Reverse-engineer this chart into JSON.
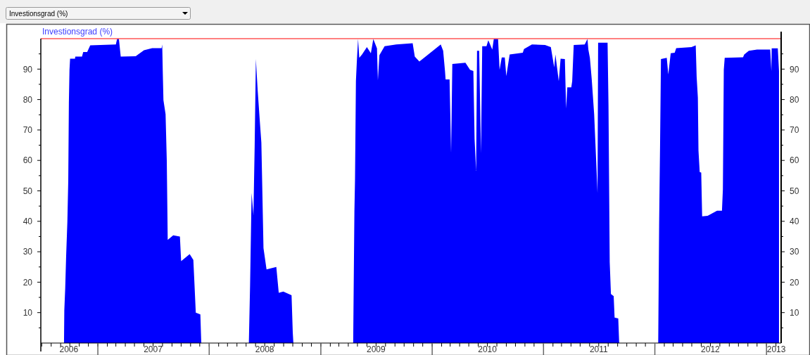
{
  "chart_data": {
    "type": "area",
    "title": "Investionsgrad (%)",
    "x": [
      "2006-09-12",
      "2006-09-13",
      "2006-09-16",
      "2006-09-19",
      "2006-09-23",
      "2006-09-26",
      "2006-09-28",
      "2006-09-30",
      "2006-10-02",
      "2006-10-18",
      "2006-10-19",
      "2006-11-10",
      "2006-11-14",
      "2006-11-27",
      "2006-12-07",
      "2007-03-01",
      "2007-03-05",
      "2007-03-11",
      "2007-03-17",
      "2007-05-05",
      "2007-06-01",
      "2007-06-28",
      "2007-07-29",
      "2007-07-31",
      "2007-08-02",
      "2007-08-04",
      "2007-08-11",
      "2007-08-15",
      "2007-08-18",
      "2007-09-05",
      "2007-09-27",
      "2007-10-01",
      "2007-10-29",
      "2007-11-10",
      "2007-11-14",
      "2007-11-18",
      "2007-12-03",
      "2007-12-06",
      "2008-05-10",
      "2008-05-14",
      "2008-05-19",
      "2008-05-25",
      "2008-05-29",
      "2008-06-02",
      "2008-06-08",
      "2008-06-15",
      "2008-06-20",
      "2008-06-27",
      "2008-07-07",
      "2008-08-08",
      "2008-08-16",
      "2008-08-31",
      "2008-09-27",
      "2008-10-01",
      "2008-10-03",
      "2009-04-17",
      "2009-04-18",
      "2009-04-21",
      "2009-04-23",
      "2009-04-26",
      "2009-04-29",
      "2009-05-03",
      "2009-05-07",
      "2009-05-16",
      "2009-06-01",
      "2009-06-14",
      "2009-06-22",
      "2009-07-04",
      "2009-07-07",
      "2009-07-12",
      "2009-07-29",
      "2009-09-05",
      "2009-10-29",
      "2009-11-05",
      "2009-11-20",
      "2009-12-14",
      "2010-01-29",
      "2010-02-06",
      "2010-02-12",
      "2010-02-14",
      "2010-02-27",
      "2010-03-04",
      "2010-03-08",
      "2010-04-20",
      "2010-05-05",
      "2010-05-16",
      "2010-05-20",
      "2010-05-25",
      "2010-05-28",
      "2010-06-04",
      "2010-06-10",
      "2010-06-14",
      "2010-06-28",
      "2010-07-04",
      "2010-07-17",
      "2010-07-22",
      "2010-08-05",
      "2010-08-10",
      "2010-08-17",
      "2010-08-27",
      "2010-09-01",
      "2010-09-12",
      "2010-10-25",
      "2010-10-29",
      "2010-11-24",
      "2011-01-06",
      "2011-01-25",
      "2011-02-05",
      "2011-02-09",
      "2011-02-20",
      "2011-02-26",
      "2011-03-12",
      "2011-03-16",
      "2011-03-20",
      "2011-04-02",
      "2011-04-05",
      "2011-04-10",
      "2011-05-16",
      "2011-05-25",
      "2011-05-28",
      "2011-06-02",
      "2011-06-08",
      "2011-06-16",
      "2011-06-21",
      "2011-06-27",
      "2011-06-29",
      "2011-07-30",
      "2011-08-02",
      "2011-08-06",
      "2011-08-10",
      "2011-08-19",
      "2011-08-22",
      "2011-09-03",
      "2011-09-06",
      "2012-01-12",
      "2012-01-15",
      "2012-01-18",
      "2012-01-21",
      "2012-02-09",
      "2012-02-14",
      "2012-02-22",
      "2012-03-06",
      "2012-03-11",
      "2012-04-30",
      "2012-05-14",
      "2012-05-17",
      "2012-05-21",
      "2012-05-23",
      "2012-05-27",
      "2012-06-01",
      "2012-06-04",
      "2012-06-22",
      "2012-07-23",
      "2012-08-08",
      "2012-08-11",
      "2012-08-14",
      "2012-08-17",
      "2012-10-16",
      "2012-10-20",
      "2012-11-04",
      "2012-12-01",
      "2013-01-13",
      "2013-01-17",
      "2013-01-18",
      "2013-02-07",
      "2013-02-11"
    ],
    "series": [
      {
        "color": "#0000ff",
        "values": [
          0,
          10.7,
          18,
          28.5,
          39.7,
          53.5,
          79,
          89.8,
          93.4,
          93.4,
          94.1,
          94.1,
          95.6,
          95.6,
          97.8,
          98.1,
          99.9,
          99.9,
          94.1,
          94.2,
          96.2,
          96.9,
          96.9,
          98.1,
          88.3,
          79.8,
          75.2,
          59.7,
          33.9,
          35.4,
          35,
          26.9,
          29.2,
          27.3,
          18.8,
          10,
          9.4,
          0,
          0,
          18.8,
          49.3,
          42,
          64.4,
          93.3,
          82.9,
          72.8,
          65.9,
          31.2,
          24.2,
          25,
          16.5,
          16.9,
          15.7,
          3.4,
          0,
          0,
          10.7,
          43.1,
          53.5,
          86,
          92.5,
          99.9,
          93.7,
          94.8,
          97.2,
          95.2,
          99.9,
          96.8,
          86.3,
          94.6,
          97.5,
          98.1,
          98.5,
          94.1,
          92.5,
          94.4,
          98.1,
          96,
          89.4,
          86.6,
          86.6,
          62.4,
          91.7,
          92.1,
          89.8,
          89.4,
          67.1,
          56.6,
          96,
          96,
          62.4,
          97.5,
          97.5,
          99.5,
          96.4,
          99.9,
          99.9,
          89.8,
          93.8,
          93.8,
          87.7,
          94.8,
          95.4,
          96.6,
          98.1,
          97.9,
          97.2,
          90.6,
          94.8,
          86,
          93.4,
          93.3,
          77.1,
          84,
          84,
          86,
          97.9,
          98.1,
          99.9,
          96.4,
          93.7,
          86.7,
          75.2,
          63.6,
          49.3,
          98.7,
          98.7,
          78.2,
          26.6,
          16.1,
          15.4,
          8.4,
          8.1,
          0,
          0,
          39.3,
          64.4,
          93.3,
          93.7,
          88.3,
          95.2,
          95.4,
          96.9,
          97.2,
          97.8,
          87.5,
          80.6,
          63.2,
          56.2,
          56,
          41.6,
          41.8,
          43.5,
          43.5,
          50.5,
          89.8,
          93.7,
          93.9,
          94.8,
          96,
          96.4,
          96.4,
          89.4,
          96.8,
          96.8,
          89.4
        ]
      }
    ],
    "xlim": [
      "2006-06-28",
      "2013-02-18"
    ],
    "xticks": [
      {
        "value": "2006-09-28",
        "label": "2006"
      },
      {
        "value": "2007-01-01",
        "label": null
      },
      {
        "value": "2007-07-01",
        "label": "2007"
      },
      {
        "value": "2008-01-01",
        "label": null
      },
      {
        "value": "2008-07-01",
        "label": "2008"
      },
      {
        "value": "2009-01-01",
        "label": null
      },
      {
        "value": "2009-07-01",
        "label": "2009"
      },
      {
        "value": "2010-01-01",
        "label": null
      },
      {
        "value": "2010-07-01",
        "label": "2010"
      },
      {
        "value": "2011-01-01",
        "label": null
      },
      {
        "value": "2011-07-01",
        "label": "2011"
      },
      {
        "value": "2012-01-01",
        "label": null
      },
      {
        "value": "2012-07-01",
        "label": "2012"
      },
      {
        "value": "2013-01-01",
        "label": null
      },
      {
        "value": "2013-02-02",
        "label": "2013"
      }
    ],
    "ylim": [
      0,
      100
    ],
    "yticks": [
      {
        "value": 5,
        "label": null
      },
      10,
      {
        "value": 15,
        "label": null
      },
      20,
      {
        "value": 25,
        "label": null
      },
      30,
      {
        "value": 35,
        "label": null
      },
      40,
      {
        "value": 45,
        "label": null
      },
      50,
      {
        "value": 55,
        "label": null
      },
      60,
      {
        "value": 65,
        "label": null
      },
      70,
      {
        "value": 75,
        "label": null
      },
      80,
      {
        "value": 85,
        "label": null
      },
      90,
      {
        "value": 95,
        "label": null
      }
    ],
    "y2lim": [
      0,
      100
    ],
    "y2ticks": [
      {
        "value": 5,
        "label": null
      },
      10,
      {
        "value": 15,
        "label": null
      },
      20,
      {
        "value": 25,
        "label": null
      },
      30,
      {
        "value": 35,
        "label": null
      },
      40,
      {
        "value": 45,
        "label": null
      },
      50,
      {
        "value": 55,
        "label": null
      },
      60,
      {
        "value": 65,
        "label": null
      },
      70,
      {
        "value": 75,
        "label": null
      },
      80,
      {
        "value": 85,
        "label": null
      },
      90,
      {
        "value": 95,
        "label": null
      }
    ],
    "ref_lines": [
      {
        "axis": "y",
        "value": 100,
        "color": "#ff0000"
      }
    ],
    "grid": false
  }
}
